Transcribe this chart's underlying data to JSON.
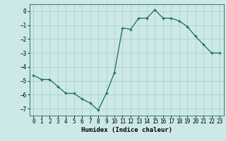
{
  "x": [
    0,
    1,
    2,
    3,
    4,
    5,
    6,
    7,
    8,
    9,
    10,
    11,
    12,
    13,
    14,
    15,
    16,
    17,
    18,
    19,
    20,
    21,
    22,
    23
  ],
  "y": [
    -4.6,
    -4.9,
    -4.9,
    -5.4,
    -5.9,
    -5.9,
    -6.3,
    -6.6,
    -7.1,
    -5.9,
    -4.4,
    -1.2,
    -1.3,
    -0.5,
    -0.5,
    0.1,
    -0.5,
    -0.5,
    -0.7,
    -1.1,
    -1.8,
    -2.4,
    -3.0,
    -3.0
  ],
  "line_color": "#1a6b5a",
  "marker": "+",
  "marker_size": 3,
  "bg_color": "#cce8e8",
  "grid_color": "#b0d0d0",
  "xlabel": "Humidex (Indice chaleur)",
  "ylim": [
    -7.5,
    0.5
  ],
  "xlim": [
    -0.5,
    23.5
  ],
  "yticks": [
    0,
    -1,
    -2,
    -3,
    -4,
    -5,
    -6,
    -7
  ],
  "xticks": [
    0,
    1,
    2,
    3,
    4,
    5,
    6,
    7,
    8,
    9,
    10,
    11,
    12,
    13,
    14,
    15,
    16,
    17,
    18,
    19,
    20,
    21,
    22,
    23
  ],
  "tick_fontsize": 5.5,
  "xlabel_fontsize": 6.5,
  "fig_bg_color": "#cce8e8",
  "spine_color": "#1a6b5a",
  "linewidth": 0.9
}
